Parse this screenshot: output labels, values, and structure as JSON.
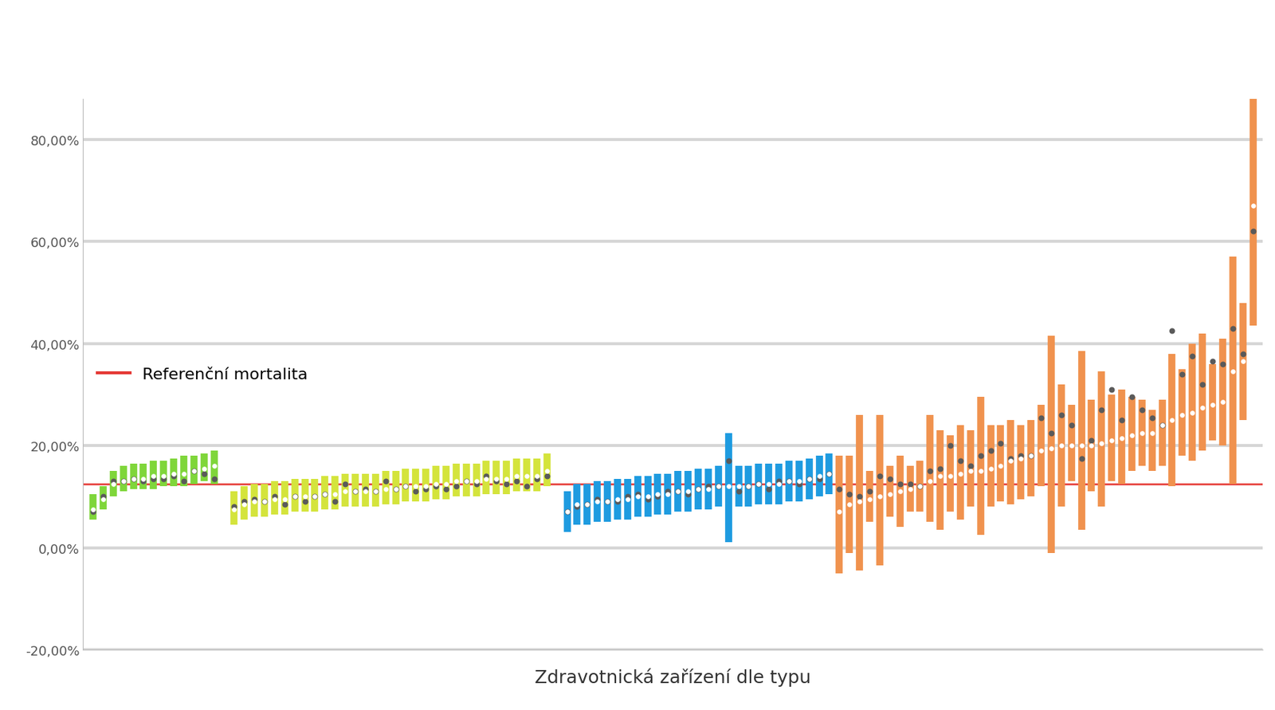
{
  "chart_data": {
    "type": "range",
    "xlabel": "Zdravotnická zařízení dle typu",
    "xlim": [
      -1,
      116
    ],
    "ylim": [
      -20,
      88
    ],
    "yticks": [
      {
        "value": -20,
        "label": "-20,00%"
      },
      {
        "value": 0,
        "label": "0,00%"
      },
      {
        "value": 20,
        "label": "20,00%"
      },
      {
        "value": 40,
        "label": "40,00%"
      },
      {
        "value": 60,
        "label": "60,00%"
      },
      {
        "value": 80,
        "label": "80,00%"
      }
    ],
    "grid": true,
    "tick_labels": "y",
    "legend": "center left",
    "reference": {
      "name": "Referenční mortalita",
      "value": 12.4,
      "color": "#e53935"
    },
    "series": [
      {
        "color": "#7fd63a",
        "x": [
          0,
          1,
          2,
          3,
          4,
          5,
          6,
          7,
          8,
          9,
          10,
          11,
          12
        ],
        "values": [
          7.5,
          9.5,
          12.5,
          13,
          13.5,
          13.5,
          14,
          14,
          14.5,
          14.5,
          15,
          15.5,
          16
        ],
        "observed": [
          7,
          10,
          13,
          13,
          13.5,
          13,
          13.5,
          13.5,
          14,
          13,
          15,
          14.5,
          13.5
        ],
        "low": [
          5.5,
          7.5,
          10,
          11,
          11.5,
          11.5,
          11.5,
          12,
          12,
          12,
          12.5,
          13,
          12.5
        ],
        "high": [
          10.5,
          12,
          15,
          16,
          16.5,
          16.5,
          17,
          17,
          17.5,
          18,
          18,
          18.5,
          19
        ]
      },
      {
        "color": "#d4e43c",
        "x": [
          14,
          15,
          16,
          17,
          18,
          19,
          20,
          21,
          22,
          23,
          24,
          25,
          26,
          27,
          28,
          29,
          30,
          31,
          32,
          33,
          34,
          35,
          36,
          37,
          38,
          39,
          40,
          41,
          42,
          43,
          44,
          45
        ],
        "values": [
          7.5,
          8.5,
          9,
          9,
          9.5,
          9.5,
          10,
          10,
          10,
          10.5,
          10.5,
          11,
          11,
          11,
          11,
          11.5,
          11.5,
          12,
          12,
          12,
          12.5,
          12.5,
          13,
          13,
          13,
          13.5,
          13.5,
          13.5,
          14,
          14,
          14,
          15
        ],
        "observed": [
          8,
          9,
          9.5,
          9,
          10,
          8.5,
          10,
          9,
          10,
          10.5,
          9,
          12.5,
          11,
          11.5,
          11,
          13,
          11.5,
          12,
          11,
          11.5,
          12,
          11.5,
          12,
          13,
          12.5,
          14,
          13,
          12.5,
          13,
          12,
          13.5,
          14
        ],
        "low": [
          4.5,
          5.5,
          6,
          6,
          6.5,
          6.5,
          7,
          7,
          7,
          7.5,
          7.5,
          8,
          8,
          8,
          8,
          8.5,
          8.5,
          9,
          9,
          9,
          9.5,
          9.5,
          10,
          10,
          10,
          10.5,
          10.5,
          10.5,
          11,
          11,
          11,
          12
        ],
        "high": [
          11,
          12,
          12.5,
          12.5,
          13,
          13,
          13.5,
          13.5,
          13.5,
          14,
          14,
          14.5,
          14.5,
          14.5,
          14.5,
          15,
          15,
          15.5,
          15.5,
          15.5,
          16,
          16,
          16.5,
          16.5,
          16.5,
          17,
          17,
          17,
          17.5,
          17.5,
          17.5,
          18.5
        ]
      },
      {
        "color": "#1e9be0",
        "x": [
          47,
          48,
          49,
          50,
          51,
          52,
          53,
          54,
          55,
          56,
          57,
          58,
          59,
          60,
          61,
          62,
          63,
          64,
          65,
          66,
          67,
          68,
          69,
          70,
          71,
          72,
          73
        ],
        "values": [
          7,
          8.5,
          8.5,
          9,
          9,
          9.5,
          9.5,
          10,
          10,
          10.5,
          10.5,
          11,
          11,
          11.5,
          11.5,
          12,
          12,
          12,
          12,
          12.5,
          12.5,
          12.5,
          13,
          13,
          13.5,
          14,
          14.5
        ],
        "observed": [
          7,
          8,
          8.5,
          9.5,
          9,
          9,
          10,
          10.5,
          9.5,
          10,
          11,
          11,
          10.5,
          11.5,
          12,
          12,
          17,
          11,
          12,
          12.5,
          11.5,
          13,
          13,
          12.5,
          13.5,
          13.5,
          14.5
        ],
        "low": [
          3,
          4.5,
          4.5,
          5,
          5,
          5.5,
          5.5,
          6,
          6,
          6.5,
          6.5,
          7,
          7,
          7.5,
          7.5,
          8,
          1,
          8,
          8,
          8.5,
          8.5,
          8.5,
          9,
          9,
          9.5,
          10,
          10.5
        ],
        "high": [
          11,
          12.5,
          12.5,
          13,
          13,
          13.5,
          13.5,
          14,
          14,
          14.5,
          14.5,
          15,
          15,
          15.5,
          15.5,
          16,
          22.5,
          16,
          16,
          16.5,
          16.5,
          16.5,
          17,
          17,
          17.5,
          18,
          18.5
        ]
      },
      {
        "color": "#f0924e",
        "x": [
          74,
          75,
          76,
          77,
          78,
          79,
          80,
          81,
          82,
          83,
          84,
          85,
          86,
          87,
          88,
          89,
          90,
          91,
          92,
          93,
          94,
          95,
          96,
          97,
          98,
          99,
          100,
          101,
          102,
          103,
          104,
          105,
          106,
          107,
          108,
          109,
          110,
          111,
          112,
          113,
          114,
          115
        ],
        "values": [
          7,
          8.5,
          9,
          9.5,
          10,
          10.5,
          11,
          11.5,
          12,
          13,
          14,
          14,
          14.5,
          15,
          15,
          15.5,
          16,
          17,
          17.5,
          18,
          19,
          19.5,
          20,
          20,
          20,
          20,
          20.5,
          21,
          21.5,
          22,
          22.5,
          22.5,
          24,
          25,
          26,
          26.5,
          27.5,
          28,
          28.5,
          34.5,
          36.5,
          67
        ],
        "observed": [
          11.5,
          10.5,
          10,
          11,
          14,
          13.5,
          12.5,
          12.5,
          12,
          15,
          15.5,
          20,
          17,
          16,
          18,
          19,
          20.5,
          17.5,
          18,
          18,
          25.5,
          22.5,
          26,
          24,
          17.5,
          21,
          27,
          31,
          25,
          29.5,
          27,
          25.5,
          24,
          42.5,
          34,
          37.5,
          32,
          36.5,
          36,
          43,
          38,
          62
        ],
        "low": [
          -5,
          -1,
          -4.5,
          5,
          -3.5,
          6,
          4,
          7,
          7,
          5,
          3.5,
          7,
          5.5,
          8,
          2.5,
          8,
          9,
          8.5,
          9.5,
          10,
          12,
          -1,
          8,
          13,
          3.5,
          11,
          8,
          13,
          12.5,
          15,
          16,
          15,
          16,
          12,
          18,
          17,
          19,
          21,
          20,
          12.5,
          25,
          43.5
        ],
        "high": [
          18,
          18,
          26,
          15,
          26,
          16,
          18,
          16,
          17,
          26,
          23,
          22,
          24,
          23,
          29.5,
          24,
          24,
          25,
          24,
          25,
          28,
          41.5,
          32,
          28,
          38.5,
          29,
          34.5,
          30,
          31,
          29.5,
          29,
          27,
          29,
          38,
          35,
          40,
          42,
          36,
          41,
          57,
          48,
          90
        ]
      }
    ]
  }
}
